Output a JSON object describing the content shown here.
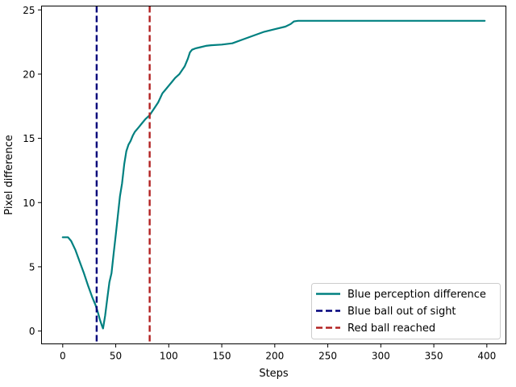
{
  "chart_data": {
    "type": "line",
    "xlabel": "Steps",
    "ylabel": "Pixel difference",
    "xlim": [
      -20,
      418
    ],
    "ylim": [
      -1,
      25.3
    ],
    "xticks": [
      0,
      50,
      100,
      150,
      200,
      250,
      300,
      350,
      400
    ],
    "yticks": [
      0,
      5,
      10,
      15,
      20,
      25
    ],
    "grid": false,
    "legend_position": "lower-right",
    "series": [
      {
        "name": "Blue perception difference",
        "color": "#008080",
        "style": "solid",
        "x": [
          0,
          5,
          8,
          12,
          16,
          20,
          24,
          28,
          31,
          33,
          35,
          37,
          38,
          40,
          42,
          44,
          46,
          48,
          50,
          52,
          54,
          56,
          58,
          60,
          62,
          64,
          66,
          68,
          70,
          72,
          75,
          78,
          82,
          86,
          90,
          94,
          98,
          100,
          103,
          106,
          110,
          115,
          118,
          120,
          122,
          125,
          130,
          135,
          140,
          150,
          160,
          170,
          180,
          190,
          200,
          210,
          215,
          218,
          222,
          230,
          250,
          300,
          350,
          398
        ],
        "y": [
          7.3,
          7.3,
          7.0,
          6.3,
          5.4,
          4.5,
          3.5,
          2.6,
          2.0,
          1.5,
          0.9,
          0.4,
          0.2,
          1.2,
          2.5,
          3.8,
          4.5,
          6.0,
          7.5,
          9.0,
          10.5,
          11.5,
          13.0,
          14.0,
          14.5,
          14.8,
          15.2,
          15.5,
          15.7,
          15.9,
          16.2,
          16.5,
          16.8,
          17.3,
          17.8,
          18.5,
          18.9,
          19.1,
          19.4,
          19.7,
          20.0,
          20.6,
          21.2,
          21.7,
          21.9,
          22.0,
          22.1,
          22.2,
          22.25,
          22.3,
          22.4,
          22.7,
          23.0,
          23.3,
          23.5,
          23.7,
          23.9,
          24.1,
          24.15,
          24.15,
          24.15,
          24.15,
          24.15,
          24.15
        ]
      },
      {
        "name": "Blue ball out of sight",
        "color": "#00007a",
        "style": "dashed",
        "vline_x": 32
      },
      {
        "name": "Red ball reached",
        "color": "#b22222",
        "style": "dashed",
        "vline_x": 82
      }
    ]
  }
}
